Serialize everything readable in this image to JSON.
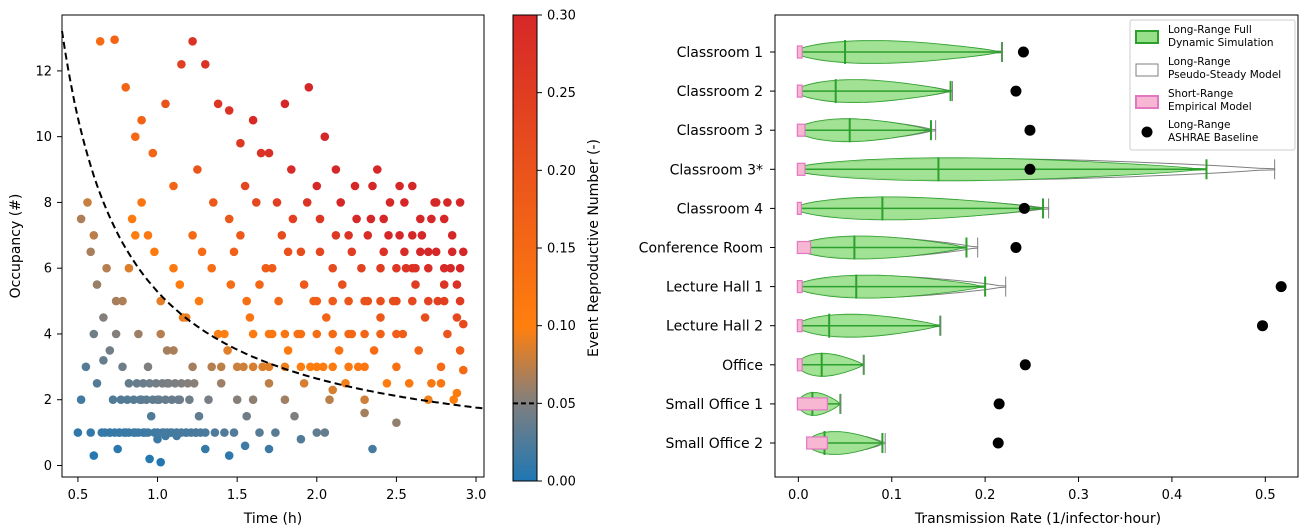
{
  "chart_data": [
    {
      "type": "scatter",
      "xlabel": "Time (h)",
      "ylabel": "Occupancy (#)",
      "xlim": [
        0.4,
        3.05
      ],
      "ylim": [
        -0.35,
        13.7
      ],
      "xticks": [
        "0.5",
        "1.0",
        "1.5",
        "2.0",
        "2.5",
        "3.0"
      ],
      "yticks": [
        "0",
        "2",
        "4",
        "6",
        "8",
        "10",
        "12"
      ],
      "color_by": "Event Reproductive Number",
      "threshold_curve": {
        "style": "dashed",
        "color": "#000000",
        "formula": "R = 0.05 iso-line"
      },
      "points": [
        [
          0.5,
          1.0
        ],
        [
          0.52,
          2.0
        ],
        [
          0.55,
          3.0
        ],
        [
          0.58,
          1.0
        ],
        [
          0.6,
          4.0
        ],
        [
          0.62,
          2.5
        ],
        [
          0.65,
          1.0
        ],
        [
          0.66,
          3.2
        ],
        [
          0.68,
          6.0
        ],
        [
          0.7,
          1.0
        ],
        [
          0.72,
          2.0
        ],
        [
          0.74,
          5.0
        ],
        [
          0.76,
          1.0
        ],
        [
          0.78,
          3.0
        ],
        [
          0.8,
          1.0
        ],
        [
          0.82,
          2.5
        ],
        [
          0.84,
          7.5
        ],
        [
          0.86,
          1.0
        ],
        [
          0.88,
          4.0
        ],
        [
          0.9,
          2.0
        ],
        [
          0.92,
          1.0
        ],
        [
          0.94,
          3.0
        ],
        [
          0.96,
          1.5
        ],
        [
          0.98,
          1.0
        ],
        [
          1.0,
          2.0
        ],
        [
          1.02,
          5.0
        ],
        [
          1.04,
          1.0
        ],
        [
          1.06,
          2.5
        ],
        [
          1.08,
          1.0
        ],
        [
          1.1,
          3.5
        ],
        [
          1.12,
          1.0
        ],
        [
          1.14,
          2.0
        ],
        [
          1.16,
          4.5
        ],
        [
          1.18,
          1.0
        ],
        [
          1.2,
          2.0
        ],
        [
          1.22,
          3.0
        ],
        [
          1.24,
          1.0
        ],
        [
          1.26,
          1.5
        ],
        [
          1.28,
          6.5
        ],
        [
          1.3,
          1.0
        ],
        [
          1.32,
          2.0
        ],
        [
          1.34,
          3.0
        ],
        [
          1.36,
          1.0
        ],
        [
          1.38,
          4.0
        ],
        [
          1.4,
          2.5
        ],
        [
          1.42,
          1.0
        ],
        [
          1.44,
          3.5
        ],
        [
          1.46,
          5.5
        ],
        [
          1.48,
          1.0
        ],
        [
          1.5,
          2.0
        ],
        [
          1.52,
          7.0
        ],
        [
          1.54,
          3.0
        ],
        [
          1.56,
          1.5
        ],
        [
          1.58,
          4.5
        ],
        [
          1.6,
          2.0
        ],
        [
          1.62,
          8.0
        ],
        [
          1.64,
          1.0
        ],
        [
          1.66,
          3.0
        ],
        [
          1.68,
          6.0
        ],
        [
          1.7,
          2.5
        ],
        [
          1.72,
          4.0
        ],
        [
          1.74,
          1.0
        ],
        [
          1.76,
          5.0
        ],
        [
          1.78,
          7.0
        ],
        [
          1.8,
          2.0
        ],
        [
          1.82,
          3.5
        ],
        [
          1.84,
          9.0
        ],
        [
          1.86,
          1.5
        ],
        [
          1.88,
          4.0
        ],
        [
          1.9,
          6.5
        ],
        [
          1.92,
          2.5
        ],
        [
          1.94,
          8.0
        ],
        [
          1.96,
          3.0
        ],
        [
          1.98,
          5.0
        ],
        [
          2.0,
          1.0
        ],
        [
          2.02,
          7.5
        ],
        [
          2.04,
          3.0
        ],
        [
          2.06,
          4.5
        ],
        [
          2.08,
          2.0
        ],
        [
          2.1,
          6.0
        ],
        [
          2.12,
          9.0
        ],
        [
          2.14,
          3.5
        ],
        [
          2.16,
          5.5
        ],
        [
          2.18,
          2.5
        ],
        [
          2.2,
          7.0
        ],
        [
          2.22,
          4.0
        ],
        [
          2.24,
          8.5
        ],
        [
          2.26,
          3.0
        ],
        [
          2.28,
          6.0
        ],
        [
          2.3,
          2.0
        ],
        [
          2.32,
          5.0
        ],
        [
          2.34,
          7.5
        ],
        [
          2.36,
          3.5
        ],
        [
          2.38,
          9.0
        ],
        [
          2.4,
          4.5
        ],
        [
          2.42,
          6.5
        ],
        [
          2.44,
          2.5
        ],
        [
          2.46,
          8.0
        ],
        [
          2.48,
          5.0
        ],
        [
          2.5,
          3.0
        ],
        [
          2.52,
          7.0
        ],
        [
          2.54,
          4.0
        ],
        [
          2.56,
          6.0
        ],
        [
          2.58,
          2.5
        ],
        [
          2.6,
          8.5
        ],
        [
          2.62,
          5.5
        ],
        [
          2.64,
          3.5
        ],
        [
          2.66,
          7.0
        ],
        [
          2.68,
          4.5
        ],
        [
          2.7,
          6.5
        ],
        [
          2.72,
          2.5
        ],
        [
          2.74,
          8.0
        ],
        [
          2.76,
          5.0
        ],
        [
          2.78,
          3.0
        ],
        [
          2.8,
          7.5
        ],
        [
          2.82,
          4.0
        ],
        [
          2.84,
          6.0
        ],
        [
          2.86,
          2.0
        ],
        [
          2.88,
          5.5
        ],
        [
          2.9,
          3.5
        ],
        [
          0.56,
          8.0
        ],
        [
          0.6,
          7.0
        ],
        [
          0.64,
          12.9
        ],
        [
          0.73,
          12.95
        ],
        [
          0.8,
          11.5
        ],
        [
          0.86,
          10.0
        ],
        [
          0.9,
          10.5
        ],
        [
          0.97,
          9.5
        ],
        [
          1.05,
          11.0
        ],
        [
          1.15,
          12.2
        ],
        [
          1.22,
          12.9
        ],
        [
          1.3,
          12.2
        ],
        [
          1.38,
          11.0
        ],
        [
          1.45,
          10.8
        ],
        [
          1.52,
          9.8
        ],
        [
          1.6,
          10.5
        ],
        [
          1.7,
          9.5
        ],
        [
          1.8,
          11.0
        ],
        [
          1.95,
          11.5
        ],
        [
          2.05,
          10.0
        ],
        [
          1.1,
          8.5
        ],
        [
          1.25,
          9.0
        ],
        [
          1.35,
          8.0
        ],
        [
          1.45,
          7.5
        ],
        [
          1.55,
          8.5
        ],
        [
          1.65,
          9.5
        ],
        [
          1.75,
          8.0
        ],
        [
          1.85,
          7.5
        ],
        [
          2.0,
          8.5
        ],
        [
          2.15,
          8.0
        ],
        [
          2.25,
          7.5
        ],
        [
          2.35,
          8.5
        ],
        [
          2.45,
          7.0
        ],
        [
          2.55,
          8.0
        ],
        [
          2.65,
          7.5
        ],
        [
          2.75,
          8.0
        ],
        [
          2.85,
          7.0
        ],
        [
          2.92,
          6.5
        ],
        [
          2.6,
          7.0
        ],
        [
          2.8,
          5.5
        ],
        [
          1.0,
          0.8
        ],
        [
          1.05,
          0.9
        ],
        [
          1.12,
          0.9
        ],
        [
          0.95,
          0.2
        ],
        [
          1.02,
          0.1
        ],
        [
          0.6,
          0.3
        ],
        [
          0.75,
          0.5
        ],
        [
          1.3,
          0.5
        ],
        [
          1.45,
          0.3
        ],
        [
          1.55,
          0.6
        ],
        [
          1.7,
          0.5
        ],
        [
          1.9,
          0.8
        ],
        [
          2.05,
          1.0
        ],
        [
          2.35,
          0.5
        ],
        [
          2.5,
          1.3
        ],
        [
          2.7,
          2.0
        ],
        [
          2.88,
          2.2
        ],
        [
          2.92,
          2.9
        ],
        [
          2.3,
          1.6
        ],
        [
          2.1,
          2.3
        ],
        [
          1.0,
          1.0
        ],
        [
          1.03,
          1.0
        ],
        [
          1.06,
          1.0
        ],
        [
          1.09,
          1.0
        ],
        [
          0.94,
          1.0
        ],
        [
          0.91,
          1.0
        ],
        [
          0.88,
          1.0
        ],
        [
          0.85,
          1.0
        ],
        [
          1.12,
          1.0
        ],
        [
          1.15,
          1.0
        ],
        [
          1.18,
          1.0
        ],
        [
          1.21,
          1.0
        ],
        [
          1.24,
          1.0
        ],
        [
          1.27,
          1.0
        ],
        [
          0.82,
          1.0
        ],
        [
          0.79,
          1.0
        ],
        [
          0.76,
          1.0
        ],
        [
          0.73,
          1.0
        ],
        [
          0.7,
          1.0
        ],
        [
          0.67,
          1.0
        ],
        [
          0.97,
          2.0
        ],
        [
          1.01,
          2.0
        ],
        [
          1.05,
          2.0
        ],
        [
          1.09,
          2.0
        ],
        [
          1.13,
          2.0
        ],
        [
          0.93,
          2.0
        ],
        [
          0.89,
          2.0
        ],
        [
          0.85,
          2.0
        ],
        [
          0.81,
          2.0
        ],
        [
          0.77,
          2.0
        ],
        [
          0.99,
          2.5
        ],
        [
          1.03,
          2.5
        ],
        [
          1.07,
          2.5
        ],
        [
          1.11,
          2.5
        ],
        [
          0.95,
          2.5
        ],
        [
          0.91,
          2.5
        ],
        [
          0.87,
          2.5
        ],
        [
          1.15,
          2.5
        ],
        [
          1.19,
          2.5
        ],
        [
          1.23,
          2.5
        ],
        [
          1.4,
          3.0
        ],
        [
          1.5,
          3.0
        ],
        [
          1.6,
          3.0
        ],
        [
          1.7,
          3.0
        ],
        [
          1.8,
          3.0
        ],
        [
          1.9,
          3.0
        ],
        [
          2.0,
          3.0
        ],
        [
          2.1,
          3.0
        ],
        [
          2.2,
          3.0
        ],
        [
          2.3,
          3.0
        ],
        [
          1.6,
          4.0
        ],
        [
          1.7,
          4.0
        ],
        [
          1.8,
          4.0
        ],
        [
          1.9,
          4.0
        ],
        [
          2.0,
          4.0
        ],
        [
          2.1,
          4.0
        ],
        [
          2.2,
          4.0
        ],
        [
          2.3,
          4.0
        ],
        [
          2.4,
          4.0
        ],
        [
          2.5,
          4.0
        ],
        [
          2.0,
          5.0
        ],
        [
          2.1,
          5.0
        ],
        [
          2.2,
          5.0
        ],
        [
          2.3,
          5.0
        ],
        [
          2.4,
          5.0
        ],
        [
          2.5,
          5.0
        ],
        [
          2.6,
          5.0
        ],
        [
          2.7,
          5.0
        ],
        [
          2.8,
          5.0
        ],
        [
          2.9,
          5.0
        ],
        [
          2.4,
          6.0
        ],
        [
          2.5,
          6.0
        ],
        [
          2.6,
          6.0
        ],
        [
          2.7,
          6.0
        ],
        [
          2.8,
          6.0
        ],
        [
          2.9,
          6.0
        ],
        [
          2.55,
          6.5
        ],
        [
          2.65,
          6.5
        ],
        [
          2.75,
          6.5
        ],
        [
          2.85,
          6.5
        ],
        [
          0.52,
          7.5
        ],
        [
          0.58,
          6.5
        ],
        [
          0.62,
          5.5
        ],
        [
          0.66,
          4.5
        ],
        [
          0.7,
          3.5
        ],
        [
          0.74,
          4.0
        ],
        [
          0.78,
          5.0
        ],
        [
          0.82,
          6.0
        ],
        [
          0.86,
          7.0
        ],
        [
          0.9,
          8.0
        ],
        [
          0.94,
          7.0
        ],
        [
          0.98,
          6.5
        ],
        [
          1.02,
          4.0
        ],
        [
          1.06,
          3.5
        ],
        [
          1.1,
          6.0
        ],
        [
          1.14,
          5.5
        ],
        [
          1.18,
          4.5
        ],
        [
          1.22,
          7.0
        ],
        [
          1.26,
          5.0
        ],
        [
          1.34,
          6.0
        ],
        [
          1.42,
          4.0
        ],
        [
          1.48,
          6.5
        ],
        [
          1.56,
          5.0
        ],
        [
          1.64,
          5.5
        ],
        [
          1.72,
          6.0
        ],
        [
          1.82,
          6.5
        ],
        [
          1.92,
          5.5
        ],
        [
          2.02,
          6.5
        ],
        [
          2.12,
          7.0
        ],
        [
          2.22,
          6.5
        ],
        [
          2.32,
          7.0
        ],
        [
          2.42,
          7.5
        ],
        [
          2.52,
          8.5
        ],
        [
          2.62,
          6.0
        ],
        [
          2.72,
          7.5
        ],
        [
          2.82,
          8.0
        ],
        [
          2.9,
          8.0
        ],
        [
          2.88,
          4.5
        ],
        [
          2.92,
          4.3
        ],
        [
          2.78,
          2.5
        ]
      ]
    },
    {
      "type": "colorbar",
      "label": "Event Reproductive Number (-)",
      "range": [
        0.0,
        0.3
      ],
      "ticks": [
        "0.00",
        "0.05",
        "0.10",
        "0.15",
        "0.20",
        "0.25",
        "0.30"
      ],
      "colors": [
        "#1f77b4",
        "#7f7f7f",
        "#ff7f0e",
        "#d62728"
      ],
      "threshold_marker": "0.05"
    },
    {
      "type": "violin",
      "xlabel": "Transmission Rate (1/infector·hour)",
      "xlim": [
        -0.025,
        0.535
      ],
      "xticks": [
        "0.0",
        "0.1",
        "0.2",
        "0.3",
        "0.4",
        "0.5"
      ],
      "categories": [
        "Classroom 1",
        "Classroom 2",
        "Classroom 3",
        "Classroom 3*",
        "Classroom 4",
        "Conference Room",
        "Lecture Hall 1",
        "Lecture Hall 2",
        "Office",
        "Small Office 1",
        "Small Office 2"
      ],
      "series": [
        {
          "name": "Long-Range Full\nDynamic Simulation",
          "color": "#2ca02c",
          "min": [
            0,
            0,
            0,
            0,
            0,
            0,
            0,
            0,
            0,
            0,
            0.01
          ],
          "median": [
            0.05,
            0.04,
            0.055,
            0.15,
            0.09,
            0.06,
            0.062,
            0.033,
            0.025,
            0.015,
            0.028
          ],
          "max": [
            0.218,
            0.163,
            0.142,
            0.437,
            0.262,
            0.18,
            0.2,
            0.152,
            0.07,
            0.045,
            0.09
          ]
        },
        {
          "name": "Long-Range\nPseudo-Steady Model",
          "color": "#7f7f7f",
          "max": [
            0.218,
            0.165,
            0.147,
            0.51,
            0.268,
            0.192,
            0.222,
            0.152,
            0.07,
            0.045,
            0.093
          ]
        },
        {
          "name": "Short-Range\nEmpirical Model",
          "color": "#e377c2",
          "max": [
            0.003,
            0.003,
            0.006,
            0.006,
            0.002,
            0.012,
            0.003,
            0.003,
            0.003,
            0.03,
            0.03
          ]
        },
        {
          "name": "Long-Range\nASHRAE Baseline",
          "color": "#000000",
          "values": [
            0.241,
            0.233,
            0.248,
            0.248,
            0.242,
            0.233,
            0.517,
            0.497,
            0.243,
            0.215,
            0.214
          ]
        }
      ],
      "legend": "top-right"
    }
  ]
}
